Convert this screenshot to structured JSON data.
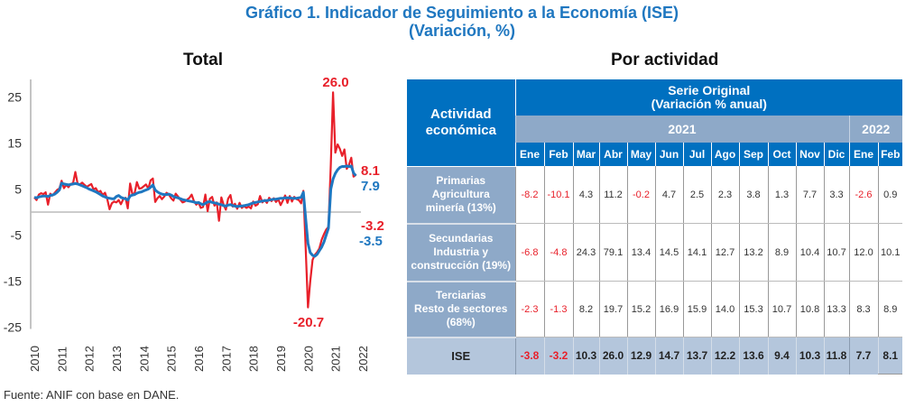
{
  "title_line1": "Gráfico 1. Indicador de Seguimiento a la Economía (ISE)",
  "title_line2": "(Variación, %)",
  "subtitle_total": "Total",
  "subtitle_activity": "Por actividad",
  "source": "Fuente: ANIF con base en DANE.",
  "colors": {
    "original": "#E8202A",
    "trend": "#1F77C0",
    "header": "#0070C0",
    "header_grey": "#8EA9C8",
    "ise_row": "#B4C6DC"
  },
  "chart_data": {
    "type": "line",
    "title": "Total",
    "xlabel": "",
    "ylabel": "",
    "ylim": [
      -25,
      25
    ],
    "yticks": [
      "25",
      "15",
      "5",
      "-5",
      "-15",
      "-25"
    ],
    "ytick_values": [
      25,
      15,
      5,
      -5,
      -15,
      -25
    ],
    "xticks": [
      "2010",
      "2011",
      "2012",
      "2013",
      "2014",
      "2015",
      "2016",
      "2017",
      "2018",
      "2019",
      "2020",
      "2021",
      "2022"
    ],
    "x_start": "2010-01",
    "frequency": "monthly",
    "series": [
      {
        "name": "ISE original",
        "color": "#E8202A",
        "values": [
          3.2,
          2.6,
          3.8,
          4.1,
          3.9,
          4.3,
          1.6,
          4.0,
          3.6,
          4.2,
          4.8,
          5.1,
          6.8,
          5.2,
          5.9,
          5.4,
          6.1,
          6.3,
          8.7,
          6.2,
          6.0,
          6.4,
          5.9,
          5.5,
          5.8,
          6.1,
          4.9,
          5.2,
          4.3,
          4.6,
          3.7,
          4.2,
          2.8,
          0.6,
          1.9,
          2.3,
          2.1,
          2.6,
          1.7,
          2.8,
          3.1,
          0.8,
          6.2,
          3.9,
          4.1,
          6.5,
          5.1,
          5.2,
          5.6,
          6.0,
          5.1,
          6.9,
          7.3,
          2.2,
          3.0,
          3.5,
          2.8,
          3.4,
          4.2,
          3.8,
          3.0,
          2.5,
          4.0,
          3.4,
          2.7,
          2.1,
          2.3,
          2.7,
          3.1,
          3.8,
          2.4,
          1.6,
          2.1,
          0.9,
          1.1,
          3.8,
          0.2,
          2.9,
          3.3,
          1.4,
          2.1,
          -1.9,
          3.2,
          1.6,
          0.5,
          2.9,
          3.7,
          1.2,
          1.8,
          0.7,
          2.0,
          0.9,
          1.3,
          0.9,
          1.2,
          0.8,
          2.3,
          1.4,
          1.7,
          3.5,
          2.1,
          2.6,
          2.0,
          3.1,
          2.4,
          3.0,
          2.2,
          2.8,
          1.5,
          2.5,
          3.6,
          2.0,
          3.5,
          2.3,
          3.3,
          2.8,
          2.6,
          1.9,
          4.6,
          -8.0,
          -20.7,
          -15.1,
          -10.4,
          -9.3,
          -8.7,
          -7.9,
          -6.0,
          -4.8,
          -3.8,
          -3.2,
          10.3,
          26.0,
          12.9,
          14.7,
          13.7,
          12.2,
          13.6,
          9.4,
          10.3,
          11.8,
          7.7,
          8.1
        ],
        "annotations": [
          {
            "label": "26.0",
            "value": 26.0
          },
          {
            "label": "-20.7",
            "value": -20.7
          },
          {
            "label": "-3.2",
            "value": -3.2
          },
          {
            "label": "8.1",
            "value": 8.1
          }
        ]
      },
      {
        "name": "ISE tendencia",
        "color": "#1F77C0",
        "values": [
          3.2,
          3.1,
          3.3,
          3.4,
          3.5,
          3.5,
          3.4,
          3.6,
          3.7,
          3.9,
          4.3,
          4.8,
          6.3,
          6.1,
          6.0,
          5.9,
          6.0,
          6.1,
          6.2,
          6.1,
          5.9,
          5.7,
          5.5,
          5.3,
          5.0,
          4.8,
          4.6,
          4.4,
          4.1,
          3.8,
          3.5,
          3.3,
          3.1,
          3.0,
          2.9,
          2.9,
          3.4,
          3.6,
          3.2,
          3.0,
          2.9,
          2.6,
          3.5,
          3.7,
          3.8,
          4.1,
          4.3,
          4.4,
          4.6,
          4.8,
          5.0,
          5.4,
          5.9,
          4.8,
          4.4,
          4.1,
          3.9,
          3.8,
          3.8,
          3.9,
          3.7,
          3.4,
          3.2,
          3.1,
          2.9,
          2.7,
          2.6,
          2.5,
          2.4,
          2.3,
          2.2,
          2.0,
          2.1,
          1.8,
          1.6,
          1.9,
          2.2,
          2.3,
          2.1,
          2.0,
          1.9,
          1.7,
          1.6,
          1.4,
          1.3,
          1.5,
          1.6,
          1.4,
          1.3,
          1.2,
          1.3,
          1.3,
          1.4,
          1.5,
          1.6,
          1.8,
          2.0,
          2.1,
          2.2,
          2.3,
          2.4,
          2.5,
          2.5,
          2.6,
          2.7,
          2.8,
          2.8,
          2.9,
          3.0,
          3.0,
          3.1,
          3.1,
          3.1,
          3.0,
          3.0,
          3.0,
          3.1,
          3.2,
          4.3,
          -1.5,
          -6.8,
          -8.8,
          -9.4,
          -9.6,
          -9.2,
          -8.4,
          -7.6,
          -6.5,
          -5.0,
          -3.5,
          5.0,
          7.2,
          8.4,
          9.2,
          9.7,
          9.9,
          9.9,
          10.0,
          9.9,
          10.0,
          8.5,
          7.9
        ],
        "annotations": [
          {
            "label": "7.9",
            "value": 7.9
          },
          {
            "label": "-3.5",
            "value": -3.5
          }
        ]
      }
    ]
  },
  "table": {
    "header_activity": "Actividad económica",
    "header_series_line1": "Serie Original",
    "header_series_line2": "(Variación % anual)",
    "years": [
      {
        "label": "2021",
        "span": 12
      },
      {
        "label": "2022",
        "span": 2
      }
    ],
    "months": [
      "Ene",
      "Feb",
      "Mar",
      "Abr",
      "May",
      "Jun",
      "Jul",
      "Ago",
      "Sep",
      "Oct",
      "Nov",
      "Dic",
      "Ene",
      "Feb"
    ],
    "rows": [
      {
        "label_lines": [
          "Primarias",
          "Agricultura",
          "minería (13%)"
        ],
        "values": [
          "-8.2",
          "-10.1",
          "4.3",
          "11.2",
          "-0.2",
          "4.7",
          "2.5",
          "2.3",
          "3.8",
          "1.3",
          "7.7",
          "3.3",
          "-2.6",
          "0.9"
        ]
      },
      {
        "label_lines": [
          "Secundarias",
          "Industria y",
          "construcción (19%)"
        ],
        "values": [
          "-6.8",
          "-4.8",
          "24.3",
          "79.1",
          "13.4",
          "14.5",
          "14.1",
          "12.7",
          "13.2",
          "8.9",
          "10.4",
          "10.7",
          "12.0",
          "10.1"
        ]
      },
      {
        "label_lines": [
          "Terciarias",
          "Resto de sectores",
          "(68%)"
        ],
        "values": [
          "-2.3",
          "-1.3",
          "8.2",
          "19.7",
          "15.2",
          "16.9",
          "15.9",
          "14.0",
          "15.3",
          "10.7",
          "10.8",
          "13.3",
          "8.3",
          "8.9"
        ]
      }
    ],
    "total_row": {
      "label": "ISE",
      "values": [
        "-3.8",
        "-3.2",
        "10.3",
        "26.0",
        "12.9",
        "14.7",
        "13.7",
        "12.2",
        "13.6",
        "9.4",
        "10.3",
        "11.8",
        "7.7",
        "8.1"
      ]
    }
  }
}
